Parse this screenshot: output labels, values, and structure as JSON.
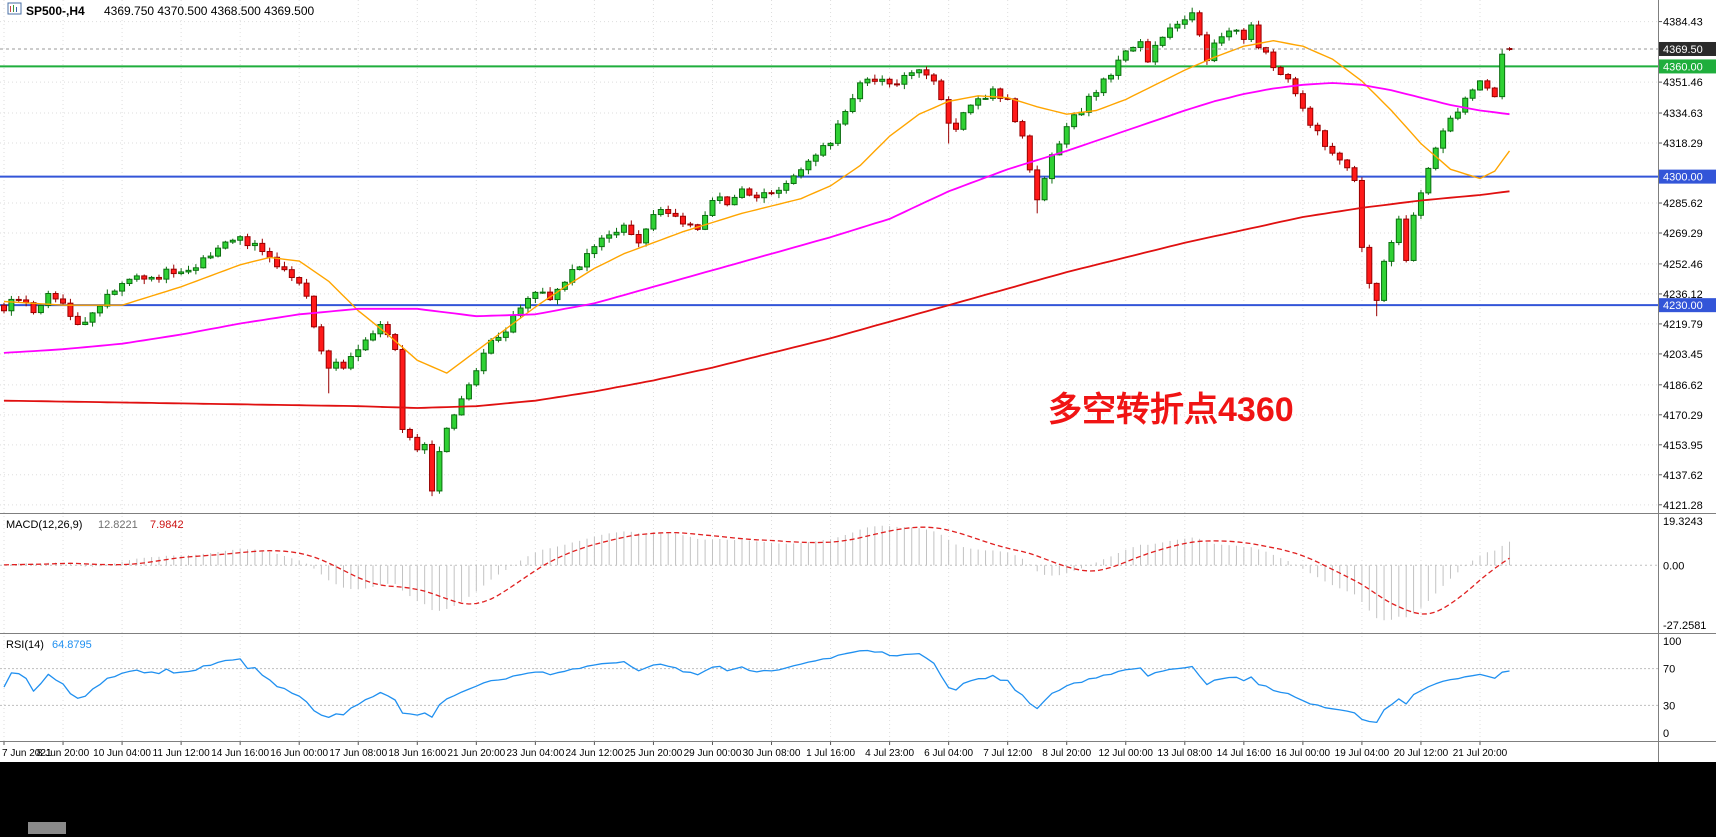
{
  "window": {
    "header": {
      "symbol": "SP500-,H4",
      "ohlc": "4369.750 4370.500 4368.500 4369.500"
    }
  },
  "colors": {
    "bull_fill": "#2FD134",
    "bull_stroke": "#0B6E10",
    "bear_fill": "#FF1A1A",
    "bear_stroke": "#990000",
    "grid": "#DEDEDE",
    "divider": "#7F7F7F",
    "axis_text": "#000000",
    "hline_blue": "#3355D8",
    "hline_green": "#1FAE3C",
    "price_tag_bg": "#2A2A2A",
    "tag_text": "#FFFFFF",
    "price_line": "#999999",
    "macd_hist": "#C2C2C2",
    "macd_signal": "#E02020",
    "rsi_line": "#2090F0",
    "level_dotted": "#BFBFBF",
    "annotation": "#F01414"
  },
  "annotation": {
    "text": "多空转折点4360"
  },
  "indicators": {
    "macd": {
      "label": "MACD(12,26,9)",
      "value_main": "12.8221",
      "value_signal": "7.9842",
      "axis_max": "19.3243",
      "axis_zero": "0.00",
      "axis_min": "-27.2581",
      "fast": 12,
      "slow": 26,
      "signal": 9
    },
    "rsi": {
      "label": "RSI(14)",
      "value": "64.8795",
      "period": 14,
      "axis_ticks": [
        100,
        70,
        30,
        0
      ],
      "levels": [
        70,
        30
      ]
    }
  },
  "chart_data": {
    "type": "candlestick",
    "symbol": "SP500-",
    "timeframe": "H4",
    "title": "SP500-,H4",
    "bars_total": 205,
    "x_tick_step": 8,
    "x_ticks": [
      "7 Jun 2021",
      "8 Jun 20:00",
      "10 Jun 04:00",
      "11 Jun 12:00",
      "14 Jun 16:00",
      "16 Jun 00:00",
      "17 Jun 08:00",
      "18 Jun 16:00",
      "21 Jun 20:00",
      "23 Jun 04:00",
      "24 Jun 12:00",
      "25 Jun 20:00",
      "29 Jun 00:00",
      "30 Jun 08:00",
      "1 Jul 16:00",
      "4 Jul 23:00",
      "6 Jul 04:00",
      "7 Jul 12:00",
      "8 Jul 20:00",
      "12 Jul 00:00",
      "13 Jul 08:00",
      "14 Jul 16:00",
      "16 Jul 00:00",
      "19 Jul 04:00",
      "20 Jul 12:00",
      "21 Jul 20:00"
    ],
    "y_ticks": [
      4384.43,
      4351.46,
      4334.63,
      4318.29,
      4285.62,
      4269.29,
      4252.46,
      4236.12,
      4219.79,
      4203.45,
      4186.62,
      4170.29,
      4153.95,
      4137.62,
      4121.28
    ],
    "y_range": [
      4119,
      4394
    ],
    "grid": "dotted",
    "hlines": [
      {
        "price": 4360.0,
        "label": "4360.00",
        "type": "green"
      },
      {
        "price": 4300.0,
        "label": "4300.00",
        "type": "blue"
      },
      {
        "price": 4230.0,
        "label": "4230.00",
        "type": "blue"
      }
    ],
    "current_price": {
      "price": 4369.5,
      "label": "4369.50"
    },
    "close_waypoints": [
      [
        0,
        4228
      ],
      [
        2,
        4234
      ],
      [
        4,
        4226
      ],
      [
        6,
        4236
      ],
      [
        8,
        4231
      ],
      [
        10,
        4219
      ],
      [
        12,
        4225
      ],
      [
        14,
        4236
      ],
      [
        16,
        4242
      ],
      [
        18,
        4247
      ],
      [
        20,
        4243
      ],
      [
        22,
        4249
      ],
      [
        24,
        4247
      ],
      [
        26,
        4252
      ],
      [
        28,
        4257
      ],
      [
        30,
        4263
      ],
      [
        32,
        4267
      ],
      [
        34,
        4262
      ],
      [
        36,
        4254
      ],
      [
        38,
        4250
      ],
      [
        40,
        4243
      ],
      [
        41,
        4234
      ],
      [
        42,
        4220
      ],
      [
        43,
        4206
      ],
      [
        44,
        4194
      ],
      [
        45,
        4201
      ],
      [
        46,
        4196
      ],
      [
        47,
        4203
      ],
      [
        49,
        4212
      ],
      [
        51,
        4221
      ],
      [
        52,
        4215
      ],
      [
        53,
        4208
      ],
      [
        54,
        4162
      ],
      [
        55,
        4158
      ],
      [
        56,
        4150
      ],
      [
        57,
        4156
      ],
      [
        58,
        4128
      ],
      [
        59,
        4152
      ],
      [
        60,
        4161
      ],
      [
        62,
        4180
      ],
      [
        64,
        4196
      ],
      [
        66,
        4209
      ],
      [
        68,
        4216
      ],
      [
        70,
        4229
      ],
      [
        72,
        4239
      ],
      [
        74,
        4234
      ],
      [
        76,
        4244
      ],
      [
        78,
        4253
      ],
      [
        80,
        4263
      ],
      [
        82,
        4269
      ],
      [
        84,
        4274
      ],
      [
        86,
        4263
      ],
      [
        88,
        4278
      ],
      [
        90,
        4282
      ],
      [
        92,
        4274
      ],
      [
        94,
        4272
      ],
      [
        96,
        4289
      ],
      [
        98,
        4285
      ],
      [
        100,
        4293
      ],
      [
        102,
        4289
      ],
      [
        104,
        4292
      ],
      [
        106,
        4297
      ],
      [
        108,
        4303
      ],
      [
        110,
        4311
      ],
      [
        112,
        4319
      ],
      [
        114,
        4337
      ],
      [
        116,
        4350
      ],
      [
        118,
        4353
      ],
      [
        120,
        4350
      ],
      [
        122,
        4354
      ],
      [
        124,
        4358
      ],
      [
        126,
        4352
      ],
      [
        127,
        4344
      ],
      [
        128,
        4330
      ],
      [
        129,
        4326
      ],
      [
        130,
        4333
      ],
      [
        132,
        4341
      ],
      [
        134,
        4347
      ],
      [
        136,
        4342
      ],
      [
        138,
        4320
      ],
      [
        139,
        4302
      ],
      [
        140,
        4286
      ],
      [
        141,
        4298
      ],
      [
        142,
        4310
      ],
      [
        144,
        4326
      ],
      [
        146,
        4337
      ],
      [
        148,
        4347
      ],
      [
        150,
        4357
      ],
      [
        152,
        4367
      ],
      [
        154,
        4373
      ],
      [
        155,
        4363
      ],
      [
        156,
        4372
      ],
      [
        158,
        4381
      ],
      [
        160,
        4387
      ],
      [
        161,
        4389
      ],
      [
        162,
        4377
      ],
      [
        163,
        4363
      ],
      [
        164,
        4373
      ],
      [
        166,
        4381
      ],
      [
        168,
        4375
      ],
      [
        169,
        4381
      ],
      [
        170,
        4371
      ],
      [
        172,
        4361
      ],
      [
        174,
        4352
      ],
      [
        176,
        4337
      ],
      [
        178,
        4323
      ],
      [
        180,
        4313
      ],
      [
        182,
        4305
      ],
      [
        183,
        4297
      ],
      [
        184,
        4262
      ],
      [
        185,
        4241
      ],
      [
        186,
        4231
      ],
      [
        187,
        4255
      ],
      [
        188,
        4266
      ],
      [
        189,
        4276
      ],
      [
        190,
        4253
      ],
      [
        191,
        4279
      ],
      [
        192,
        4291
      ],
      [
        193,
        4305
      ],
      [
        194,
        4317
      ],
      [
        196,
        4331
      ],
      [
        198,
        4343
      ],
      [
        200,
        4353
      ],
      [
        201,
        4348
      ],
      [
        202,
        4345
      ],
      [
        203,
        4368
      ],
      [
        204,
        4369.5
      ]
    ],
    "special_bars": {
      "44": {
        "low": 4182
      },
      "58": {
        "low": 4126
      },
      "128": {
        "low": 4318
      },
      "140": {
        "low": 4280
      },
      "161": {
        "high": 4392
      },
      "186": {
        "low": 4224
      },
      "204": {
        "open": 4369.75,
        "high": 4370.5,
        "low": 4368.5,
        "close": 4369.5
      }
    },
    "overlays": [
      {
        "name": "ma-fast",
        "color": "#FFA500",
        "width": 1.4,
        "points": [
          [
            0,
            4232
          ],
          [
            8,
            4230
          ],
          [
            16,
            4230
          ],
          [
            24,
            4240
          ],
          [
            32,
            4252
          ],
          [
            36,
            4256
          ],
          [
            40,
            4254
          ],
          [
            44,
            4243
          ],
          [
            48,
            4227
          ],
          [
            52,
            4214
          ],
          [
            56,
            4200
          ],
          [
            60,
            4193
          ],
          [
            64,
            4205
          ],
          [
            68,
            4217
          ],
          [
            72,
            4229
          ],
          [
            76,
            4240
          ],
          [
            80,
            4250
          ],
          [
            84,
            4258
          ],
          [
            88,
            4264
          ],
          [
            92,
            4270
          ],
          [
            96,
            4275
          ],
          [
            100,
            4280
          ],
          [
            104,
            4284
          ],
          [
            108,
            4288
          ],
          [
            112,
            4295
          ],
          [
            116,
            4306
          ],
          [
            120,
            4322
          ],
          [
            124,
            4334
          ],
          [
            128,
            4341
          ],
          [
            132,
            4344
          ],
          [
            136,
            4343
          ],
          [
            140,
            4338
          ],
          [
            144,
            4334
          ],
          [
            148,
            4336
          ],
          [
            152,
            4342
          ],
          [
            156,
            4350
          ],
          [
            160,
            4358
          ],
          [
            164,
            4365
          ],
          [
            168,
            4371
          ],
          [
            172,
            4374
          ],
          [
            176,
            4371
          ],
          [
            180,
            4364
          ],
          [
            184,
            4352
          ],
          [
            188,
            4336
          ],
          [
            192,
            4318
          ],
          [
            196,
            4304
          ],
          [
            200,
            4299
          ],
          [
            202,
            4303
          ],
          [
            204,
            4314
          ]
        ]
      },
      {
        "name": "ma-mid",
        "color": "#FF00FF",
        "width": 1.8,
        "points": [
          [
            0,
            4204
          ],
          [
            8,
            4206
          ],
          [
            16,
            4209
          ],
          [
            24,
            4214
          ],
          [
            32,
            4220
          ],
          [
            40,
            4225
          ],
          [
            48,
            4228
          ],
          [
            56,
            4228
          ],
          [
            64,
            4224
          ],
          [
            72,
            4225
          ],
          [
            80,
            4231
          ],
          [
            88,
            4240
          ],
          [
            96,
            4249
          ],
          [
            104,
            4258
          ],
          [
            112,
            4267
          ],
          [
            120,
            4277
          ],
          [
            128,
            4292
          ],
          [
            136,
            4304
          ],
          [
            144,
            4314
          ],
          [
            152,
            4325
          ],
          [
            160,
            4336
          ],
          [
            164,
            4341
          ],
          [
            168,
            4345
          ],
          [
            172,
            4348
          ],
          [
            176,
            4350
          ],
          [
            180,
            4351
          ],
          [
            184,
            4350
          ],
          [
            188,
            4347
          ],
          [
            192,
            4343
          ],
          [
            196,
            4339
          ],
          [
            200,
            4336
          ],
          [
            204,
            4334
          ]
        ]
      },
      {
        "name": "ma-slow",
        "color": "#E01010",
        "width": 1.8,
        "points": [
          [
            0,
            4178
          ],
          [
            16,
            4177
          ],
          [
            32,
            4176
          ],
          [
            48,
            4175
          ],
          [
            56,
            4174
          ],
          [
            64,
            4175
          ],
          [
            72,
            4178
          ],
          [
            80,
            4183
          ],
          [
            88,
            4189
          ],
          [
            96,
            4196
          ],
          [
            104,
            4204
          ],
          [
            112,
            4212
          ],
          [
            120,
            4221
          ],
          [
            128,
            4230
          ],
          [
            136,
            4239
          ],
          [
            144,
            4248
          ],
          [
            152,
            4256
          ],
          [
            160,
            4264
          ],
          [
            168,
            4271
          ],
          [
            176,
            4278
          ],
          [
            184,
            4283
          ],
          [
            192,
            4287
          ],
          [
            200,
            4290
          ],
          [
            204,
            4292
          ]
        ]
      }
    ]
  }
}
